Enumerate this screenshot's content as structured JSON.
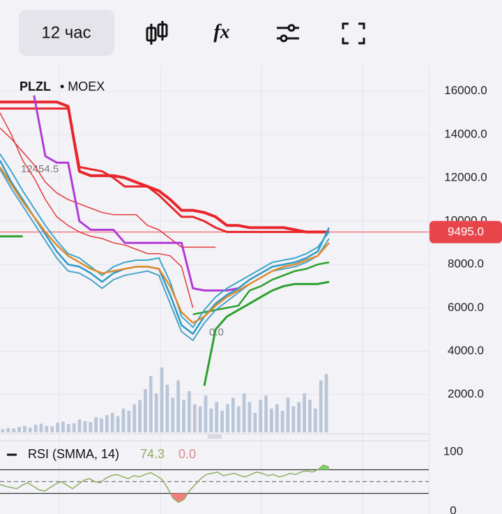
{
  "toolbar": {
    "interval": "12 час",
    "indicators_icon": "fx"
  },
  "chart_data": {
    "type": "line",
    "title": "PLZL",
    "subtitle": "• MOEX",
    "ylim": [
      250,
      17150
    ],
    "yticks": [
      {
        "value": 2000,
        "label": "2000.0"
      },
      {
        "value": 4000,
        "label": "4000.0"
      },
      {
        "value": 6000,
        "label": "6000.0"
      },
      {
        "value": 8000,
        "label": "8000.0"
      },
      {
        "value": 10000,
        "label": "10000.0"
      },
      {
        "value": 12000,
        "label": "12000.0"
      },
      {
        "value": 14000,
        "label": "14000.0"
      },
      {
        "value": 16000,
        "label": "16000.0"
      }
    ],
    "last_price": {
      "value": 9495,
      "label": "9495.0",
      "color": "#e8454b"
    },
    "high_label": "12454.5",
    "low_label": "0.0",
    "series": [
      {
        "color": "#e8262b",
        "width": 4,
        "values": [
          15500,
          15500,
          15500,
          15500,
          15500,
          15500,
          15300,
          12300,
          12100,
          12100,
          12100,
          12000,
          11800,
          11600,
          11400,
          11000,
          10500,
          10500,
          10400,
          10200,
          9800,
          9800,
          9700,
          9700,
          9700,
          9700,
          9600,
          9500,
          9500,
          9500
        ]
      },
      {
        "color": "#e8262b",
        "width": 3,
        "values": [
          15200,
          15200,
          15200,
          15200,
          15200,
          15200,
          15200,
          12500,
          12400,
          12300,
          12000,
          11600,
          11600,
          11600,
          11200,
          10700,
          10200,
          10200,
          10000,
          9700,
          9500,
          9500,
          9500,
          9500,
          9500,
          9500,
          9500,
          9500,
          9500,
          9500
        ]
      },
      {
        "color": "#e33a3a",
        "width": 1.5,
        "values": [
          14300,
          13800,
          13200,
          12600,
          11800,
          11300,
          11000,
          10800,
          10600,
          10400,
          10300,
          10300,
          10300,
          9800,
          9600,
          9200,
          8800,
          8800,
          8800,
          8800,
          null,
          null,
          null,
          null,
          null,
          null,
          null,
          null,
          null,
          null
        ]
      },
      {
        "color": "#e33a3a",
        "width": 1.5,
        "values": [
          15000,
          14000,
          12800,
          12000,
          11000,
          10200,
          9800,
          9500,
          9300,
          9200,
          9000,
          8900,
          8700,
          8500,
          8500,
          8400,
          7900,
          6000,
          null,
          null,
          null,
          null,
          null,
          null,
          null,
          null,
          null,
          null,
          null,
          null
        ]
      },
      {
        "color": "#b23ad6",
        "width": 3,
        "values": [
          null,
          null,
          null,
          15800,
          13000,
          12700,
          12700,
          10000,
          9600,
          9600,
          9600,
          9000,
          9000,
          9000,
          9000,
          9000,
          9000,
          6900,
          6800,
          6800,
          6800,
          6900,
          null,
          null,
          null,
          null,
          null,
          null,
          null,
          null
        ]
      },
      {
        "color": "#2aa02c",
        "width": 3,
        "values": [
          9300,
          9300,
          9300,
          null,
          null,
          null,
          null,
          null,
          null,
          null,
          null,
          null,
          null,
          null,
          null,
          null,
          null,
          null,
          2400,
          5000,
          5600,
          5900,
          6200,
          6500,
          6800,
          7000,
          7100,
          7100,
          7100,
          7200
        ]
      },
      {
        "color": "#2aa02c",
        "width": 2.5,
        "values": [
          null,
          null,
          null,
          null,
          null,
          null,
          null,
          null,
          null,
          null,
          null,
          null,
          null,
          null,
          null,
          null,
          null,
          5700,
          5800,
          5900,
          6000,
          6100,
          6800,
          7000,
          7300,
          7500,
          7700,
          7800,
          8000,
          8100
        ]
      },
      {
        "color": "#2b9ac9",
        "width": 2.5,
        "values": [
          12800,
          11800,
          11000,
          10200,
          9400,
          8600,
          8000,
          7900,
          7600,
          7200,
          7600,
          7800,
          7900,
          7900,
          7800,
          6600,
          5200,
          4800,
          5600,
          6200,
          6600,
          6900,
          7300,
          7600,
          7900,
          8000,
          8100,
          8300,
          8600,
          9700
        ]
      },
      {
        "color": "#3ba6c8",
        "width": 2,
        "values": [
          13100,
          12300,
          11400,
          10600,
          9800,
          9100,
          8500,
          8300,
          7900,
          7500,
          7900,
          8100,
          8200,
          8200,
          8300,
          7200,
          5600,
          5100,
          5900,
          6500,
          6900,
          7200,
          7500,
          7800,
          8100,
          8200,
          8300,
          8500,
          8800,
          9500
        ]
      },
      {
        "color": "#4aa3c4",
        "width": 2,
        "values": [
          12400,
          11500,
          10700,
          9900,
          9100,
          8300,
          7700,
          7600,
          7300,
          6900,
          7300,
          7500,
          7600,
          7700,
          7500,
          6200,
          4900,
          4500,
          5300,
          5900,
          6300,
          6700,
          7100,
          7400,
          7700,
          7800,
          7900,
          8100,
          8400,
          9200
        ]
      },
      {
        "color": "#e08a2a",
        "width": 2.5,
        "values": [
          12500,
          11700,
          10900,
          10200,
          9500,
          8900,
          8400,
          8100,
          7800,
          7600,
          7700,
          7800,
          7900,
          7900,
          7800,
          7000,
          5800,
          5300,
          5600,
          6100,
          6500,
          6800,
          7100,
          7400,
          7700,
          7900,
          8000,
          8200,
          8400,
          9000
        ]
      }
    ],
    "volume": {
      "color": "#b9c6d8",
      "values": [
        150,
        200,
        180,
        250,
        300,
        220,
        350,
        400,
        300,
        280,
        450,
        500,
        380,
        420,
        600,
        520,
        480,
        700,
        650,
        800,
        900,
        750,
        1100,
        1000,
        1300,
        1500,
        2000,
        2600,
        1800,
        3000,
        2200,
        1600,
        2400,
        1500,
        1900,
        1300,
        1200,
        1700,
        1100,
        1400,
        1000,
        1300,
        1600,
        1200,
        1800,
        1400,
        900,
        1500,
        1700,
        1100,
        1300,
        1000,
        1600,
        1200,
        1400,
        1800,
        1500,
        1100,
        2400,
        2700
      ]
    }
  },
  "rsi": {
    "type": "line",
    "title": "RSI (SMMA, 14)",
    "value_label": "74.3",
    "second_label": "0.0",
    "ylim": [
      -4.7,
      117.6
    ],
    "yticks": [
      0,
      100
    ],
    "levels": [
      30,
      50,
      70
    ],
    "color": "#8fae5f",
    "values": [
      45,
      42,
      40,
      38,
      44,
      48,
      42,
      36,
      34,
      40,
      46,
      50,
      44,
      38,
      45,
      52,
      55,
      50,
      48,
      56,
      60,
      62,
      58,
      55,
      60,
      58,
      62,
      65,
      60,
      54,
      40,
      22,
      15,
      20,
      35,
      45,
      55,
      62,
      64,
      66,
      60,
      62,
      64,
      60,
      58,
      62,
      66,
      64,
      60,
      62,
      58,
      60,
      64,
      62,
      66,
      68,
      66,
      70,
      78,
      74.3
    ]
  }
}
